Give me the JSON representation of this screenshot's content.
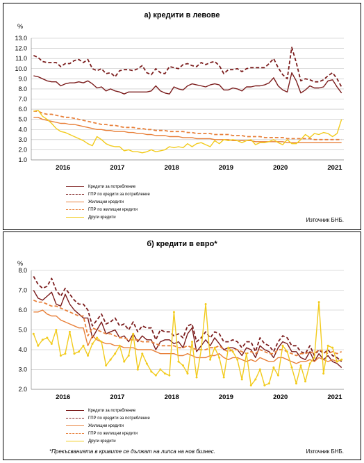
{
  "colors": {
    "consumer": "#7b1c1c",
    "apr_consumer": "#7b1c1c",
    "housing": "#e8803a",
    "apr_housing": "#e8803a",
    "other": "#f2cb1d"
  },
  "source_label": "Източник БНБ.",
  "footnote": "*Прекъсванията в кривите се дължат на липса на нов бизнес.",
  "chart_data": [
    {
      "type": "line",
      "title": "а) кредити в левове",
      "ylabel": "%",
      "ylim": [
        1.0,
        13.0
      ],
      "yticks": [
        "1.0",
        "2.0",
        "3.0",
        "4.0",
        "5.0",
        "6.0",
        "7.0",
        "8.0",
        "9.0",
        "10.0",
        "11.0",
        "12.0",
        "13.0"
      ],
      "xticks": [
        "2016",
        "2017",
        "2018",
        "2019",
        "2020",
        "2021"
      ],
      "x_start": "2015-12",
      "x_end": "2021-03",
      "legend": [
        "Кредити за потребление",
        "ГПР по кредити за потребление",
        "Жилищни кредити",
        "ГПР по жилищни кредити",
        "Други кредити"
      ],
      "series": [
        {
          "name": "Кредити за потребление",
          "values": [
            9.3,
            9.2,
            9.0,
            8.8,
            8.7,
            8.7,
            8.3,
            8.5,
            8.6,
            8.6,
            8.7,
            8.6,
            8.8,
            8.5,
            8.1,
            8.2,
            7.8,
            8.0,
            7.8,
            7.7,
            7.5,
            7.7,
            7.7,
            7.7,
            7.7,
            7.7,
            7.8,
            8.3,
            7.8,
            7.6,
            7.5,
            8.2,
            8.0,
            7.9,
            8.3,
            8.5,
            8.4,
            8.3,
            8.2,
            8.4,
            8.5,
            8.4,
            7.9,
            7.9,
            8.1,
            8.0,
            7.8,
            8.2,
            8.2,
            8.3,
            8.3,
            8.4,
            8.6,
            9.1,
            8.3,
            7.9,
            7.7,
            9.6,
            8.8,
            7.6,
            7.9,
            8.3,
            8.1,
            8.1,
            8.2,
            8.8,
            8.9,
            8.2,
            7.6
          ]
        },
        {
          "name": "ГПР по кредити за потребление",
          "values": [
            11.3,
            11.1,
            10.7,
            10.6,
            10.6,
            10.6,
            10.2,
            10.5,
            10.5,
            10.8,
            10.9,
            10.6,
            10.9,
            10.0,
            9.8,
            10.0,
            9.5,
            9.6,
            9.2,
            9.8,
            9.9,
            9.9,
            9.8,
            10.0,
            10.3,
            9.6,
            9.4,
            10.0,
            9.6,
            9.5,
            10.2,
            10.1,
            10.0,
            10.4,
            10.5,
            10.3,
            10.2,
            10.6,
            10.4,
            10.6,
            10.7,
            10.3,
            9.5,
            9.9,
            9.9,
            10.0,
            9.7,
            10.0,
            10.1,
            10.1,
            10.1,
            10.1,
            10.5,
            11.0,
            10.1,
            9.4,
            9.0,
            12.1,
            10.6,
            8.8,
            9.0,
            8.9,
            8.7,
            8.7,
            8.9,
            9.3,
            9.6,
            9.0,
            8.2
          ]
        },
        {
          "name": "Жилищни кредити",
          "values": [
            5.2,
            5.2,
            5.0,
            4.9,
            4.8,
            4.7,
            4.6,
            4.6,
            4.5,
            4.5,
            4.4,
            4.3,
            4.2,
            4.1,
            4.0,
            4.0,
            3.9,
            3.9,
            3.8,
            3.8,
            3.8,
            3.7,
            3.7,
            3.6,
            3.6,
            3.5,
            3.5,
            3.4,
            3.4,
            3.4,
            3.3,
            3.3,
            3.3,
            3.2,
            3.2,
            3.2,
            3.1,
            3.1,
            3.1,
            3.1,
            3.0,
            3.0,
            3.0,
            3.0,
            2.9,
            2.9,
            2.9,
            2.9,
            2.9,
            2.8,
            2.8,
            2.8,
            2.8,
            2.8,
            2.8,
            2.8,
            2.7,
            2.7,
            2.7,
            2.7,
            2.7,
            2.7,
            2.7,
            2.7,
            2.7,
            2.7,
            2.7,
            2.7,
            2.7
          ]
        },
        {
          "name": "ГПР по жилищни кредити",
          "values": [
            5.8,
            5.8,
            5.6,
            5.5,
            5.5,
            5.4,
            5.3,
            5.2,
            5.2,
            5.1,
            5.0,
            4.9,
            4.8,
            4.7,
            4.6,
            4.5,
            4.5,
            4.4,
            4.4,
            4.3,
            4.2,
            4.2,
            4.2,
            4.1,
            4.1,
            4.0,
            4.0,
            3.9,
            3.9,
            3.9,
            3.8,
            3.8,
            3.8,
            3.8,
            3.7,
            3.7,
            3.6,
            3.6,
            3.6,
            3.6,
            3.5,
            3.5,
            3.5,
            3.5,
            3.4,
            3.4,
            3.4,
            3.3,
            3.3,
            3.3,
            3.3,
            3.2,
            3.2,
            3.2,
            3.2,
            3.2,
            3.1,
            3.1,
            3.1,
            3.1,
            3.1,
            3.1,
            3.0,
            3.0,
            3.0,
            3.0,
            3.0,
            3.0,
            3.0
          ]
        },
        {
          "name": "Други кредити",
          "values": [
            5.8,
            5.9,
            5.3,
            5.0,
            4.6,
            4.1,
            3.8,
            3.7,
            3.5,
            3.3,
            3.1,
            2.9,
            2.6,
            2.4,
            3.3,
            3.0,
            2.6,
            2.4,
            2.3,
            2.3,
            1.9,
            2.0,
            1.8,
            1.8,
            1.7,
            1.8,
            2.0,
            1.8,
            1.9,
            2.0,
            2.3,
            2.2,
            2.3,
            2.2,
            2.6,
            2.3,
            2.6,
            2.7,
            2.5,
            2.3,
            2.9,
            2.6,
            3.0,
            2.9,
            3.0,
            2.9,
            2.7,
            2.9,
            3.0,
            2.5,
            2.7,
            2.7,
            2.8,
            3.0,
            2.7,
            2.5,
            3.0,
            2.6,
            2.6,
            3.0,
            3.5,
            3.2,
            3.6,
            3.5,
            3.7,
            3.6,
            3.3,
            3.6,
            5.0
          ]
        }
      ]
    },
    {
      "type": "line",
      "title": "б) кредити в евро*",
      "ylabel": "%",
      "ylim": [
        2.0,
        8.0
      ],
      "yticks": [
        "2.0",
        "3.0",
        "4.0",
        "5.0",
        "6.0",
        "7.0",
        "8.0"
      ],
      "xticks": [
        "2016",
        "2017",
        "2018",
        "2019",
        "2020",
        "2021"
      ],
      "x_start": "2015-12",
      "x_end": "2021-03",
      "legend": [
        "Кредити за потребление",
        "ГПР по кредити за потребление",
        "Жилищни кредити",
        "ГПР по жилищни кредити",
        "Други кредити"
      ],
      "series": [
        {
          "name": "Кредити за потребление",
          "values": [
            7.0,
            6.6,
            6.5,
            6.7,
            6.9,
            6.3,
            6.2,
            6.8,
            6.3,
            6.0,
            5.8,
            5.6,
            5.6,
            4.6,
            5.0,
            5.4,
            4.8,
            4.9,
            5.0,
            4.6,
            4.7,
            4.4,
            4.8,
            4.4,
            4.7,
            4.5,
            4.5,
            4.0,
            4.4,
            4.5,
            4.5,
            4.3,
            4.4,
            4.1,
            4.8,
            5.1,
            3.9,
            4.2,
            4.5,
            4.2,
            4.6,
            4.3,
            4.0,
            4.1,
            4.1,
            4.0,
            3.7,
            4.1,
            4.0,
            3.6,
            4.2,
            4.0,
            3.9,
            3.6,
            4.1,
            4.4,
            4.3,
            3.9,
            3.9,
            3.6,
            3.5,
            3.9,
            3.4,
            3.8,
            3.5,
            3.7,
            3.4,
            3.3,
            3.1
          ]
        },
        {
          "name": "ГПР по кредити за потребление",
          "values": [
            7.7,
            7.3,
            7.1,
            7.2,
            7.6,
            7.0,
            6.7,
            7.1,
            6.8,
            6.5,
            6.3,
            6.3,
            6.0,
            5.2,
            5.5,
            5.8,
            5.3,
            5.4,
            5.6,
            5.2,
            5.3,
            5.0,
            5.4,
            4.9,
            5.2,
            5.1,
            5.1,
            4.5,
            5.0,
            4.9,
            4.9,
            4.7,
            4.8,
            4.6,
            5.2,
            5.3,
            4.4,
            4.6,
            4.9,
            4.6,
            4.9,
            4.8,
            4.4,
            4.4,
            4.5,
            4.4,
            4.1,
            4.4,
            4.4,
            3.9,
            4.6,
            4.3,
            4.2,
            3.9,
            4.4,
            4.7,
            4.6,
            4.2,
            4.2,
            3.9,
            3.8,
            4.2,
            3.7,
            4.0,
            3.8,
            4.0,
            3.7,
            3.6,
            3.4
          ]
        },
        {
          "name": "Жилищни кредити",
          "values": [
            5.9,
            5.9,
            6.0,
            5.8,
            5.7,
            5.7,
            5.5,
            5.4,
            5.3,
            5.2,
            5.1,
            5.1,
            4.2,
            4.7,
            4.5,
            4.4,
            4.3,
            4.3,
            4.2,
            4.2,
            4.1,
            4.1,
            4.1,
            4.0,
            4.0,
            4.0,
            4.0,
            3.9,
            3.8,
            3.8,
            3.8,
            3.8,
            3.7,
            3.7,
            3.8,
            3.7,
            3.6,
            3.6,
            3.6,
            3.7,
            3.7,
            3.8,
            3.6,
            3.5,
            3.6,
            3.6,
            3.5,
            3.4,
            3.5,
            3.4,
            3.6,
            3.5,
            3.4,
            3.4,
            3.6,
            3.6,
            3.5,
            3.4,
            3.3,
            3.4,
            3.4,
            3.5,
            3.4,
            3.6,
            3.5,
            3.4,
            3.5,
            3.4,
            3.5
          ]
        },
        {
          "name": "ГПР по жилищни кредити",
          "values": [
            6.5,
            6.4,
            6.4,
            6.3,
            6.2,
            6.2,
            6.1,
            6.0,
            5.9,
            5.8,
            5.7,
            5.7,
            4.7,
            5.1,
            5.0,
            4.9,
            4.8,
            4.8,
            4.7,
            4.6,
            4.6,
            4.5,
            4.5,
            4.5,
            4.4,
            4.4,
            4.4,
            4.3,
            4.2,
            4.2,
            4.2,
            4.2,
            4.1,
            4.1,
            4.2,
            4.1,
            4.0,
            4.0,
            4.0,
            4.1,
            4.1,
            4.2,
            4.0,
            3.9,
            4.0,
            4.0,
            3.9,
            3.8,
            3.9,
            3.8,
            4.0,
            3.9,
            3.8,
            3.8,
            4.0,
            4.0,
            3.9,
            3.8,
            3.7,
            3.8,
            3.8,
            3.9,
            3.8,
            4.0,
            3.9,
            3.8,
            3.9,
            3.8,
            3.9
          ]
        },
        {
          "name": "Други кредити",
          "values": [
            4.8,
            4.2,
            4.5,
            4.6,
            4.3,
            5.0,
            3.7,
            3.8,
            4.9,
            3.8,
            3.9,
            4.2,
            3.7,
            4.3,
            4.6,
            4.4,
            3.2,
            3.5,
            3.8,
            4.2,
            3.4,
            3.7,
            4.8,
            3.0,
            3.8,
            3.3,
            2.9,
            2.7,
            3.0,
            2.8,
            2.7,
            5.9,
            3.4,
            3.2,
            2.8,
            4.4,
            2.6,
            4.0,
            6.3,
            3.5,
            4.1,
            3.6,
            2.6,
            4.1,
            3.9,
            3.5,
            2.5,
            3.8,
            2.2,
            2.5,
            3.0,
            2.2,
            2.3,
            3.1,
            2.7,
            4.2,
            3.9,
            3.1,
            2.3,
            3.2,
            2.4,
            3.3,
            3.6,
            6.4,
            2.8,
            4.2,
            4.1,
            3.4,
            3.5
          ]
        }
      ]
    }
  ]
}
